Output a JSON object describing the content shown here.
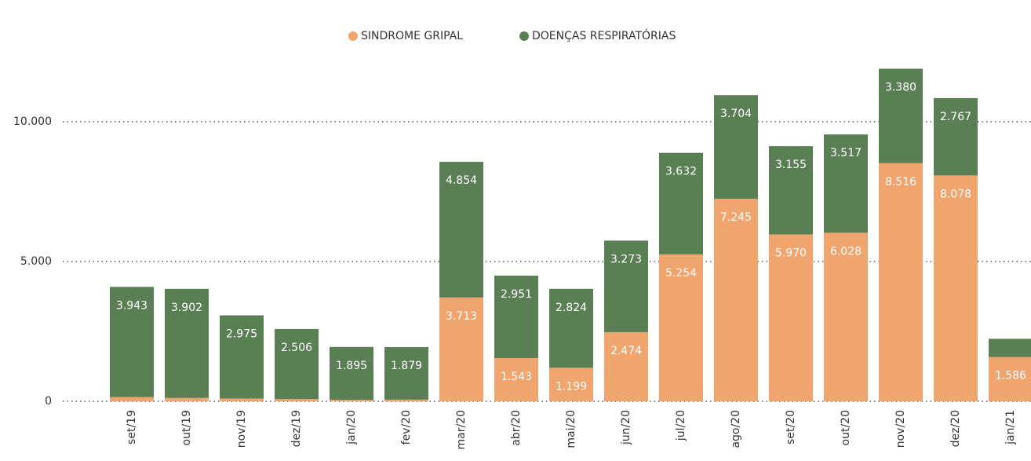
{
  "chart_data": {
    "type": "stacked-bar",
    "categories": [
      "set/19",
      "out/19",
      "nov/19",
      "dez/19",
      "jan/20",
      "fev/20",
      "mar/20",
      "abr/20",
      "mai/20",
      "jun/20",
      "jul/20",
      "ago/20",
      "set/20",
      "out/20",
      "nov/20",
      "dez/20",
      "jan/21"
    ],
    "series": [
      {
        "name": "SINDROME GRIPAL",
        "color": "#f0a46e",
        "values": [
          150,
          120,
          100,
          80,
          50,
          60,
          3713,
          1543,
          1199,
          2474,
          5254,
          7245,
          5970,
          6028,
          8516,
          8078,
          1586
        ],
        "value_labels": [
          null,
          null,
          null,
          null,
          null,
          null,
          "3.713",
          "1.543",
          "1.199",
          "2.474",
          "5.254",
          "7.245",
          "5.970",
          "6.028",
          "8.516",
          "8.078",
          "1.586"
        ]
      },
      {
        "name": "DOENÇAS RESPIRATÓRIAS",
        "color": "#5b7f55",
        "values": [
          3943,
          3902,
          2975,
          2506,
          1895,
          1879,
          4854,
          2951,
          2824,
          3273,
          3632,
          3704,
          3155,
          3517,
          3380,
          2767,
          650
        ],
        "value_labels": [
          "3.943",
          "3.902",
          "2.975",
          "2.506",
          "1.895",
          "1.879",
          "4.854",
          "2.951",
          "2.824",
          "3.273",
          "3.632",
          "3.704",
          "3.155",
          "3.517",
          "3.380",
          "2.767",
          null
        ]
      }
    ],
    "ylim": [
      0,
      14000
    ],
    "yticks": [
      {
        "value": 0,
        "label": "0"
      },
      {
        "value": 5000,
        "label": "5.000"
      },
      {
        "value": 10000,
        "label": "10.000"
      }
    ],
    "grid": true,
    "legend": "top"
  }
}
